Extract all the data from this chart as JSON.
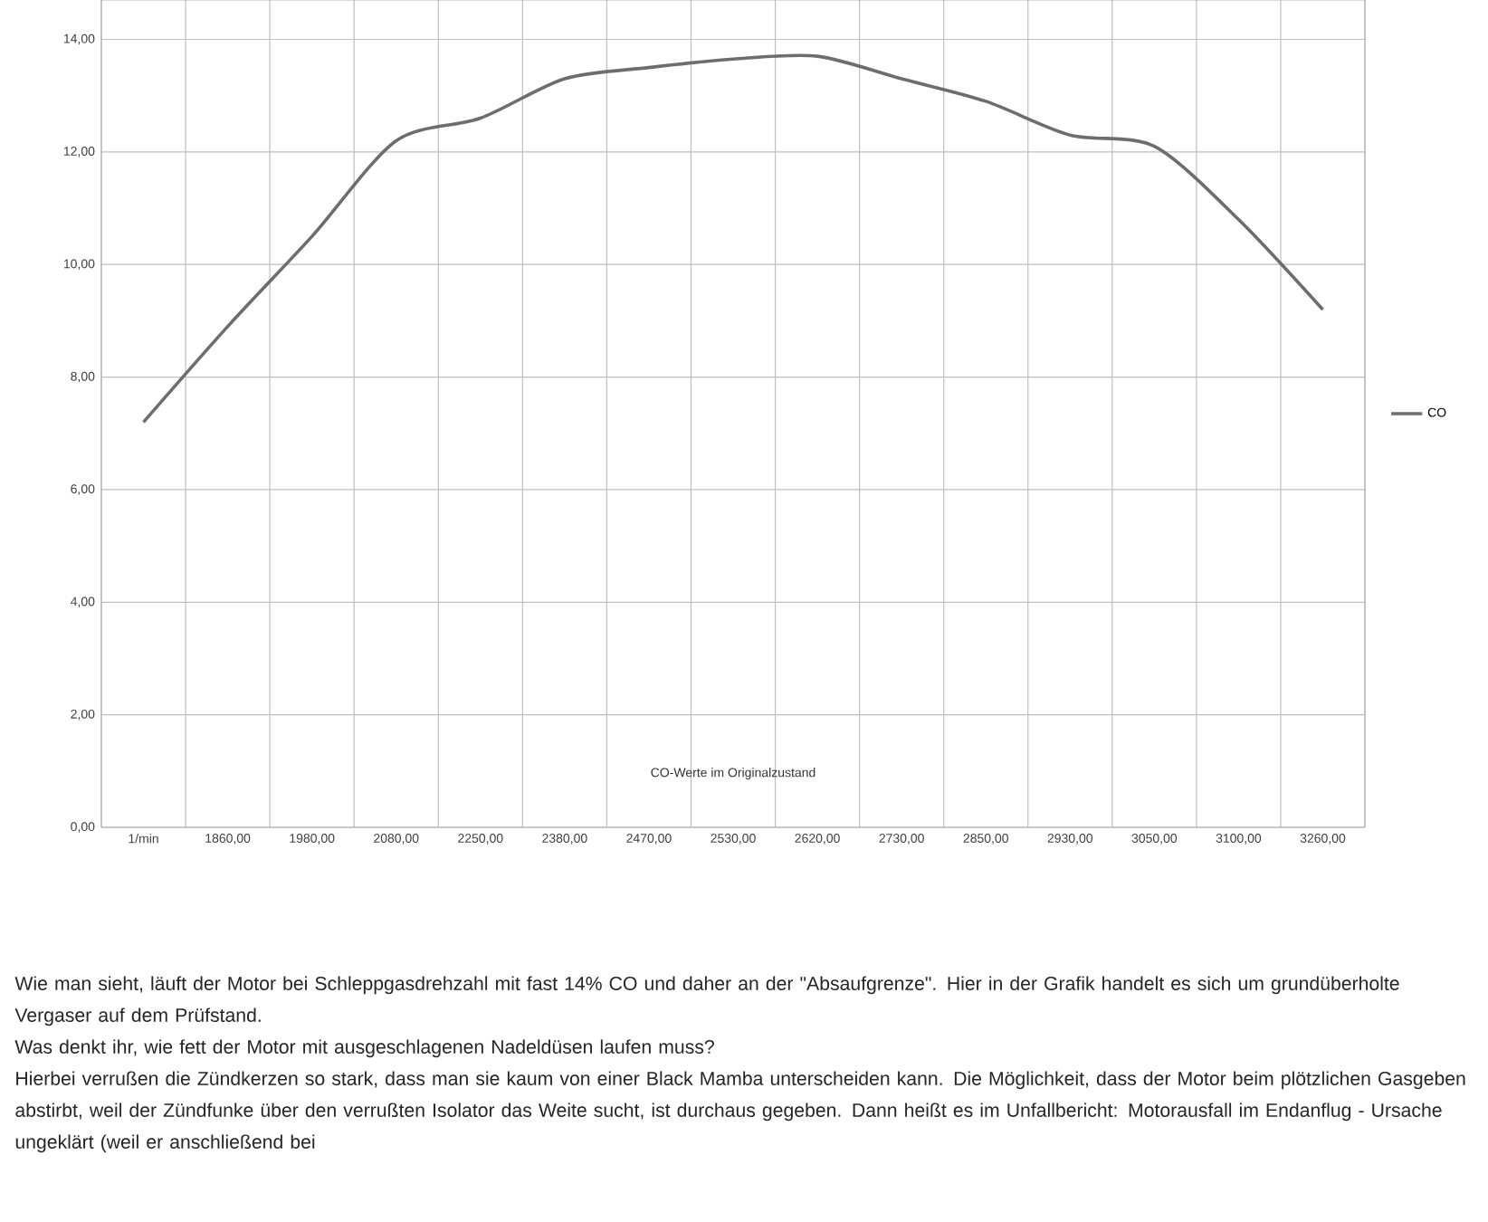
{
  "chart_data": {
    "type": "line",
    "categories": [
      "1/min",
      "1860,00",
      "1980,00",
      "2080,00",
      "2250,00",
      "2380,00",
      "2470,00",
      "2530,00",
      "2620,00",
      "2730,00",
      "2850,00",
      "2930,00",
      "3050,00",
      "3100,00",
      "3260,00"
    ],
    "series": [
      {
        "name": "CO",
        "color": "#6d6d6d",
        "values": [
          7.2,
          8.9,
          10.5,
          12.2,
          12.6,
          13.3,
          13.5,
          13.65,
          13.7,
          13.3,
          12.9,
          12.3,
          12.1,
          10.8,
          9.2
        ]
      }
    ],
    "ylim": [
      0,
      14.7
    ],
    "yticks": [
      {
        "value": 0,
        "label": "0,00"
      },
      {
        "value": 2,
        "label": "2,00"
      },
      {
        "value": 4,
        "label": "4,00"
      },
      {
        "value": 6,
        "label": "6,00"
      },
      {
        "value": 8,
        "label": "8,00"
      },
      {
        "value": 10,
        "label": "10,00"
      },
      {
        "value": 12,
        "label": "12,00"
      },
      {
        "value": 14,
        "label": "14,00"
      }
    ],
    "grid": true,
    "legend": "right",
    "marker": "none",
    "line_style": "solid",
    "annotations": [
      "CO-Werte im Originalzustand",
      "Wie man sieht, läuft der Motor bei Schleppgasdrehzahl mit fast 14% CO und daher an der \"Absaufgrenze\". Hier in der Grafik handelt es sich um grundüberholte Vergaser auf dem Prüfstand.",
      "Was denkt ihr, wie fett der Motor mit ausgeschlagenen Nadeldüsen laufen muss?",
      "Hierbei verrußen die Zündkerzen so stark, dass man sie kaum von einer Black Mamba unterscheiden kann. Die Möglichkeit, dass der Motor beim plötzlichen Gasgeben abstirbt, weil der Zündfunke über den verrußten Isolator das Weite sucht, ist durchaus gegeben. Dann heißt es im Unfallbericht: Motorausfall im Endanflug - Ursache ungeklärt (weil er anschließend bei"
    ]
  }
}
